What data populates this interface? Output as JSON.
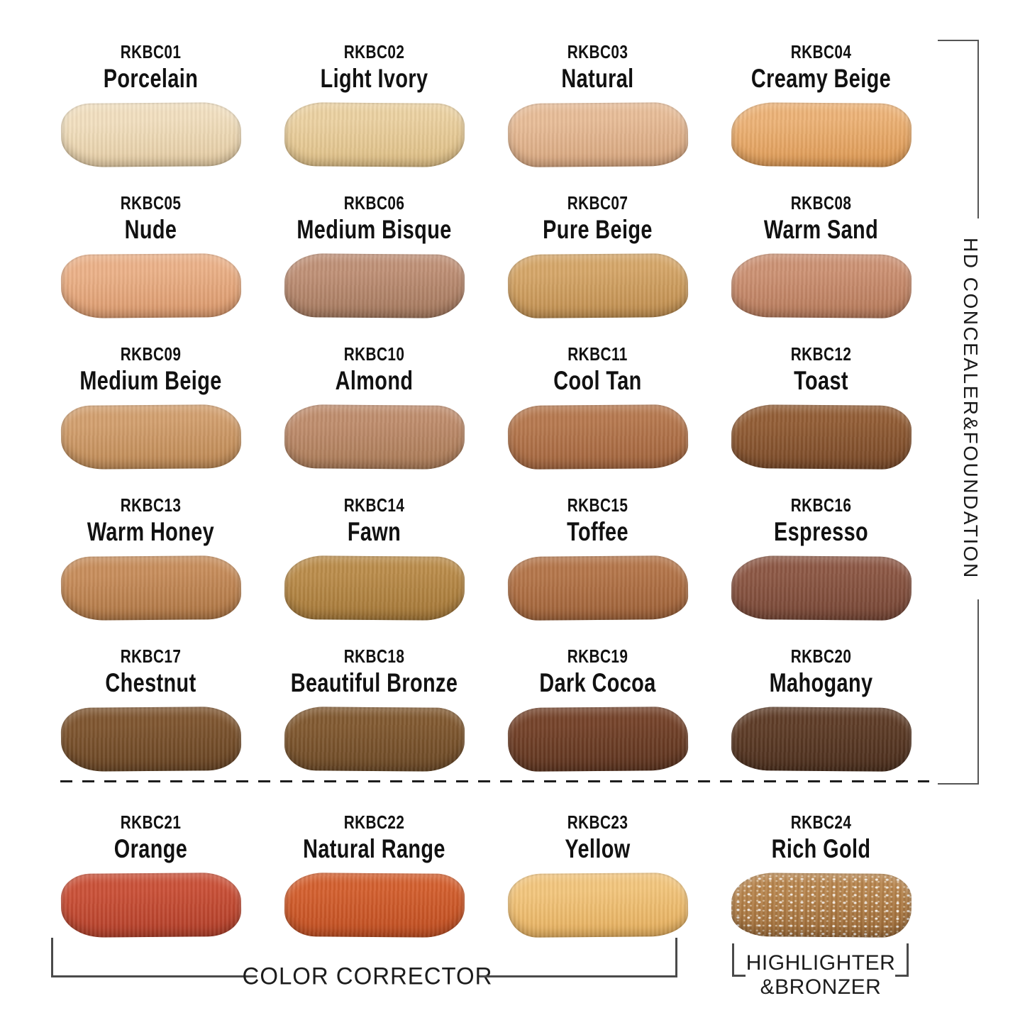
{
  "side_label": {
    "text": "HD CONCEALER&FOUNDATION"
  },
  "bottom_labels": {
    "color_corrector": "COLOR CORRECTOR",
    "highlighter_line1": "HIGHLIGHTER",
    "highlighter_line2": "&BRONZER"
  },
  "groups": {
    "top_group": "HD CONCEALER&FOUNDATION",
    "bottom_left_group": "COLOR CORRECTOR",
    "bottom_right_group": "HIGHLIGHTER &BRONZER"
  },
  "swatches": [
    {
      "code": "RKBC01",
      "name": "Porcelain",
      "color": "#f2e0c0",
      "color_edge": "#e4cba2"
    },
    {
      "code": "RKBC02",
      "name": "Light Ivory",
      "color": "#ecd2a2",
      "color_edge": "#ddbd83"
    },
    {
      "code": "RKBC03",
      "name": "Natural",
      "color": "#e8bd98",
      "color_edge": "#d6a47c"
    },
    {
      "code": "RKBC04",
      "name": "Creamy Beige",
      "color": "#edb377",
      "color_edge": "#dd9852"
    },
    {
      "code": "RKBC05",
      "name": "Nude",
      "color": "#ecb289",
      "color_edge": "#da986b"
    },
    {
      "code": "RKBC06",
      "name": "Medium Bisque",
      "color": "#c09177",
      "color_edge": "#a3775c"
    },
    {
      "code": "RKBC07",
      "name": "Pure Beige",
      "color": "#d6a769",
      "color_edge": "#bf8d4e"
    },
    {
      "code": "RKBC08",
      "name": "Warm Sand",
      "color": "#cd9274",
      "color_edge": "#b67959"
    },
    {
      "code": "RKBC09",
      "name": "Medium Beige",
      "color": "#d3a06f",
      "color_edge": "#bd8853"
    },
    {
      "code": "RKBC10",
      "name": "Almond",
      "color": "#c08e6e",
      "color_edge": "#a97955"
    },
    {
      "code": "RKBC11",
      "name": "Cool Tan",
      "color": "#b7794f",
      "color_edge": "#a1633c"
    },
    {
      "code": "RKBC12",
      "name": "Toast",
      "color": "#935e36",
      "color_edge": "#784827"
    },
    {
      "code": "RKBC13",
      "name": "Warm Honey",
      "color": "#c88e5c",
      "color_edge": "#ae7543"
    },
    {
      "code": "RKBC14",
      "name": "Fawn",
      "color": "#bb8d4b",
      "color_edge": "#a37636"
    },
    {
      "code": "RKBC15",
      "name": "Toffee",
      "color": "#b5764a",
      "color_edge": "#9d6037"
    },
    {
      "code": "RKBC16",
      "name": "Espresso",
      "color": "#8d5845",
      "color_edge": "#754534"
    },
    {
      "code": "RKBC17",
      "name": "Chestnut",
      "color": "#7f5630",
      "color_edge": "#684423"
    },
    {
      "code": "RKBC18",
      "name": "Beautiful Bronze",
      "color": "#825a31",
      "color_edge": "#6b4825"
    },
    {
      "code": "RKBC19",
      "name": "Dark Cocoa",
      "color": "#75432a",
      "color_edge": "#5c331e"
    },
    {
      "code": "RKBC20",
      "name": "Mahogany",
      "color": "#5f3d28",
      "color_edge": "#4b2e1c"
    },
    {
      "code": "RKBC21",
      "name": "Orange",
      "color": "#cb5138",
      "color_edge": "#b23f29"
    },
    {
      "code": "RKBC22",
      "name": "Natural Range",
      "color": "#d4602f",
      "color_edge": "#bf4d20"
    },
    {
      "code": "RKBC23",
      "name": "Yellow",
      "color": "#f3c67d",
      "color_edge": "#e5ae5c"
    },
    {
      "code": "RKBC24",
      "name": "Rich Gold",
      "color": "#b6834b",
      "color_edge": "#996734",
      "sparkle": true
    }
  ]
}
